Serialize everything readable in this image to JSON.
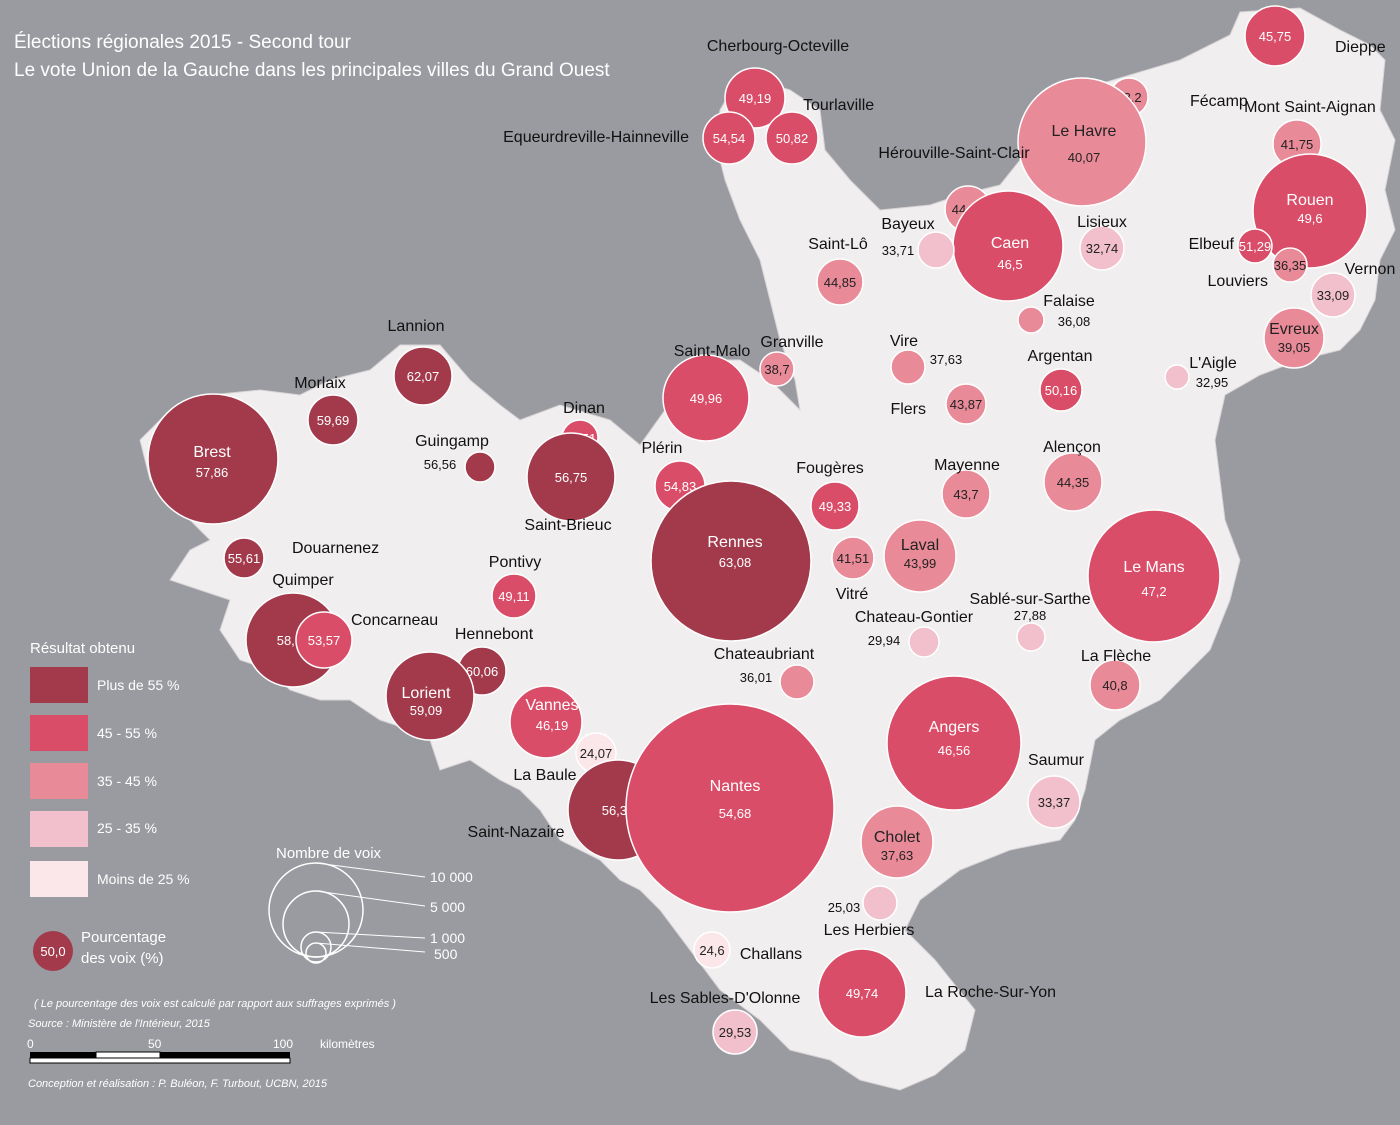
{
  "title": {
    "line1": "Élections régionales 2015 - Second tour",
    "line2": "Le vote Union de la Gauche dans les principales villes du Grand Ouest"
  },
  "colors": {
    "background": "#9a9ba0",
    "land": "#f1eeef",
    "class_over55": "#a23a4c",
    "class_45_55": "#da4d68",
    "class_35_45": "#e98a98",
    "class_25_35": "#f2c0cc",
    "class_under25": "#fbe6ea"
  },
  "legend": {
    "title": "Résultat obtenu",
    "classes": [
      {
        "label": "Plus de 55 %",
        "color": "#a23a4c"
      },
      {
        "label": "45 - 55 %",
        "color": "#da4d68"
      },
      {
        "label": "35 - 45 %",
        "color": "#e98a98"
      },
      {
        "label": "25 - 35 %",
        "color": "#f2c0cc"
      },
      {
        "label": "Moins de 25 %",
        "color": "#fbe6ea"
      }
    ],
    "sample_value": "50,0",
    "sample_label_line1": "Pourcentage",
    "sample_label_line2": "des voix (%)",
    "size_title": "Nombre de voix",
    "size_labels": [
      "10 000",
      "5 000",
      "1 000",
      "500"
    ]
  },
  "note": "( Le pourcentage des voix est calculé par rapport aux suffrages exprimés )",
  "source": "Source : Ministère de l'Intérieur, 2015",
  "scale": {
    "ticks": [
      "0",
      "50",
      "100"
    ],
    "unit": "kilomètres"
  },
  "credits": "Conception et réalisation : P. Buléon, F. Turbout, UCBN, 2015",
  "cities": [
    {
      "name": "Dieppe",
      "value": "45,75",
      "cls": 1
    },
    {
      "name": "Fécamp",
      "value": "38,2",
      "cls": 2
    },
    {
      "name": "Le Havre",
      "value": "40,07",
      "cls": 2
    },
    {
      "name": "Mont Saint-Aignan",
      "value": "41,75",
      "cls": 2
    },
    {
      "name": "Rouen",
      "value": "49,6",
      "cls": 1
    },
    {
      "name": "Elbeuf",
      "value": "51,29",
      "cls": 1
    },
    {
      "name": "Louviers",
      "value": "36,35",
      "cls": 2
    },
    {
      "name": "Vernon",
      "value": "33,09",
      "cls": 3
    },
    {
      "name": "Evreux",
      "value": "39,05",
      "cls": 2
    },
    {
      "name": "L'Aigle",
      "value": "32,95",
      "cls": 3
    },
    {
      "name": "Cherbourg-Octeville",
      "value": "49,19",
      "cls": 1
    },
    {
      "name": "Equeurdreville-Hainneville",
      "value": "54,54",
      "cls": 1
    },
    {
      "name": "Tourlaville",
      "value": "50,82",
      "cls": 1
    },
    {
      "name": "Hérouville-Saint-Clair",
      "value": "44,12",
      "cls": 2
    },
    {
      "name": "Caen",
      "value": "46,5",
      "cls": 1
    },
    {
      "name": "Bayeux",
      "value": "33,71",
      "cls": 3
    },
    {
      "name": "Lisieux",
      "value": "32,74",
      "cls": 3
    },
    {
      "name": "Saint-Lô",
      "value": "44,85",
      "cls": 2
    },
    {
      "name": "Falaise",
      "value": "36,08",
      "cls": 2
    },
    {
      "name": "Granville",
      "value": "38,7",
      "cls": 2
    },
    {
      "name": "Vire",
      "value": "37,63",
      "cls": 2
    },
    {
      "name": "Flers",
      "value": "43,87",
      "cls": 2
    },
    {
      "name": "Argentan",
      "value": "50,16",
      "cls": 1
    },
    {
      "name": "Alençon",
      "value": "44,35",
      "cls": 2
    },
    {
      "name": "Mayenne",
      "value": "43,7",
      "cls": 2
    },
    {
      "name": "Lannion",
      "value": "62,07",
      "cls": 0
    },
    {
      "name": "Morlaix",
      "value": "59,69",
      "cls": 0
    },
    {
      "name": "Brest",
      "value": "57,86",
      "cls": 0
    },
    {
      "name": "Guingamp",
      "value": "56,56",
      "cls": 0
    },
    {
      "name": "Dinan",
      "value": "50,51",
      "cls": 1
    },
    {
      "name": "Saint-Brieuc",
      "value": "56,75",
      "cls": 0
    },
    {
      "name": "Saint-Malo",
      "value": "49,96",
      "cls": 1
    },
    {
      "name": "Plérin",
      "value": "54,83",
      "cls": 1
    },
    {
      "name": "Fougères",
      "value": "49,33",
      "cls": 1
    },
    {
      "name": "Rennes",
      "value": "63,08",
      "cls": 0
    },
    {
      "name": "Vitré",
      "value": "41,51",
      "cls": 2
    },
    {
      "name": "Laval",
      "value": "43,99",
      "cls": 2
    },
    {
      "name": "Douarnenez",
      "value": "55,61",
      "cls": 0
    },
    {
      "name": "Quimper",
      "value": "58,15",
      "cls": 0
    },
    {
      "name": "Concarneau",
      "value": "53,57",
      "cls": 1
    },
    {
      "name": "Pontivy",
      "value": "49,11",
      "cls": 1
    },
    {
      "name": "Hennebont",
      "value": "60,06",
      "cls": 0
    },
    {
      "name": "Lorient",
      "value": "59,09",
      "cls": 0
    },
    {
      "name": "Vannes",
      "value": "46,19",
      "cls": 1
    },
    {
      "name": "La Baule",
      "value": "24,07",
      "cls": 4
    },
    {
      "name": "Saint-Nazaire",
      "value": "56,33",
      "cls": 0
    },
    {
      "name": "Nantes",
      "value": "54,68",
      "cls": 1
    },
    {
      "name": "Chateaubriant",
      "value": "36,01",
      "cls": 2
    },
    {
      "name": "Chateau-Gontier",
      "value": "29,94",
      "cls": 3
    },
    {
      "name": "Sablé-sur-Sarthe",
      "value": "27,88",
      "cls": 3
    },
    {
      "name": "Le Mans",
      "value": "47,2",
      "cls": 1
    },
    {
      "name": "La Flèche",
      "value": "40,8",
      "cls": 2
    },
    {
      "name": "Angers",
      "value": "46,56",
      "cls": 1
    },
    {
      "name": "Saumur",
      "value": "33,37",
      "cls": 3
    },
    {
      "name": "Cholet",
      "value": "37,63",
      "cls": 2
    },
    {
      "name": "Les Herbiers",
      "value": "25,03",
      "cls": 3
    },
    {
      "name": "Challans",
      "value": "24,6",
      "cls": 4
    },
    {
      "name": "La Roche-Sur-Yon",
      "value": "49,74",
      "cls": 1
    },
    {
      "name": "Les Sables-D'Olonne",
      "value": "29,53",
      "cls": 3
    }
  ]
}
